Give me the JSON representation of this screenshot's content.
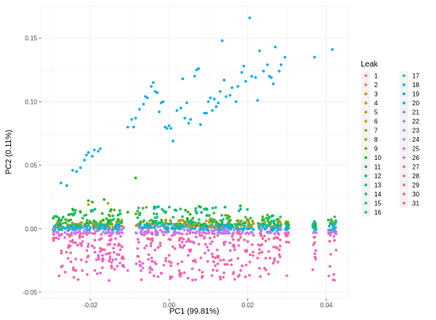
{
  "chart_data": {
    "type": "scatter",
    "xlabel": "PC1 (99.81%)",
    "ylabel": "PC2 (0.11%)",
    "xlim": [
      -0.0325,
      0.0455
    ],
    "ylim": [
      -0.055,
      0.175
    ],
    "x_ticks": [
      -0.02,
      0.0,
      0.02,
      0.04
    ],
    "x_tick_labels": [
      "-0.02",
      "0.00",
      "0.02",
      "0.04"
    ],
    "y_ticks": [
      -0.05,
      0.0,
      0.05,
      0.1,
      0.15
    ],
    "y_tick_labels": [
      "-0.05",
      "0.00",
      "0.05",
      "0.10",
      "0.15"
    ],
    "grid": true,
    "legend": {
      "title": "Leak",
      "placement": "right",
      "entries": [
        "1",
        "2",
        "3",
        "4",
        "5",
        "6",
        "7",
        "8",
        "9",
        "10",
        "11",
        "12",
        "13",
        "14",
        "15",
        "16",
        "17",
        "18",
        "19",
        "20",
        "21",
        "22",
        "23",
        "24",
        "25",
        "26",
        "27",
        "28",
        "29",
        "30",
        "31"
      ],
      "colors": [
        "#F8766D",
        "#EF7F45",
        "#E28A00",
        "#D49200",
        "#C49A00",
        "#B0A100",
        "#9AA800",
        "#80AE00",
        "#5BB300",
        "#1BB800",
        "#00BB4B",
        "#00BE6C",
        "#00C087",
        "#00C19D",
        "#00C0B2",
        "#00BEC4",
        "#00BAD5",
        "#00B5E4",
        "#00ADF2",
        "#00A5FF",
        "#619CFF",
        "#8B93FF",
        "#A98BFC",
        "#C07EF7",
        "#D175F0",
        "#E06BE4",
        "#EB66D5",
        "#F562C4",
        "#FB61B1",
        "#FF639D",
        "#FF6889"
      ]
    },
    "series": [
      {
        "name": "20",
        "color": "#00ADF2",
        "points": [
          [
            -0.0275,
            0.036
          ],
          [
            -0.026,
            0.034
          ],
          [
            -0.0245,
            0.046
          ],
          [
            -0.0235,
            0.045
          ],
          [
            -0.0225,
            0.048
          ],
          [
            -0.0215,
            0.054
          ],
          [
            -0.021,
            0.058
          ],
          [
            -0.0205,
            0.06
          ],
          [
            -0.0195,
            0.057
          ],
          [
            -0.019,
            0.062
          ],
          [
            -0.018,
            0.061
          ],
          [
            -0.0175,
            0.063
          ],
          [
            -0.0105,
            0.08
          ],
          [
            -0.0095,
            0.086
          ],
          [
            -0.009,
            0.08
          ],
          [
            -0.0085,
            0.087
          ],
          [
            -0.0075,
            0.094
          ],
          [
            -0.0065,
            0.098
          ],
          [
            -0.006,
            0.104
          ],
          [
            -0.0055,
            0.103
          ],
          [
            -0.0045,
            0.112
          ],
          [
            -0.004,
            0.115
          ],
          [
            -0.0035,
            0.108
          ],
          [
            -0.003,
            0.107
          ],
          [
            -0.0025,
            0.092
          ],
          [
            -0.002,
            0.099
          ],
          [
            -0.0015,
            0.1
          ],
          [
            -0.001,
            0.08
          ],
          [
            -0.0005,
            0.079
          ],
          [
            0.0,
            0.081
          ],
          [
            0.0005,
            0.079
          ],
          [
            0.001,
            0.069
          ],
          [
            0.002,
            0.093
          ],
          [
            0.003,
            0.095
          ],
          [
            0.0035,
            0.118
          ],
          [
            0.004,
            0.087
          ],
          [
            0.0045,
            0.099
          ],
          [
            0.005,
            0.083
          ],
          [
            0.0055,
            0.086
          ],
          [
            0.0065,
            0.12
          ],
          [
            0.007,
            0.125
          ],
          [
            0.0075,
            0.126
          ],
          [
            0.008,
            0.082
          ],
          [
            0.009,
            0.091
          ],
          [
            0.0095,
            0.091
          ],
          [
            0.01,
            0.1
          ],
          [
            0.0105,
            0.103
          ],
          [
            0.011,
            0.093
          ],
          [
            0.0115,
            0.102
          ],
          [
            0.012,
            0.096
          ],
          [
            0.0125,
            0.099
          ],
          [
            0.013,
            0.108
          ],
          [
            0.0135,
            0.148
          ],
          [
            0.014,
            0.117
          ],
          [
            0.0145,
            0.104
          ],
          [
            0.0155,
            0.105
          ],
          [
            0.016,
            0.111
          ],
          [
            0.017,
            0.1
          ],
          [
            0.0175,
            0.112
          ],
          [
            0.0185,
            0.123
          ],
          [
            0.019,
            0.128
          ],
          [
            0.0195,
            0.116
          ],
          [
            0.0205,
            0.166
          ],
          [
            0.021,
            0.12
          ],
          [
            0.022,
            0.119
          ],
          [
            0.0225,
            0.101
          ],
          [
            0.023,
            0.14
          ],
          [
            0.024,
            0.124
          ],
          [
            0.025,
            0.129
          ],
          [
            0.0255,
            0.12
          ],
          [
            0.026,
            0.119
          ],
          [
            0.0265,
            0.114
          ],
          [
            0.027,
            0.143
          ],
          [
            0.028,
            0.124
          ],
          [
            0.0285,
            0.129
          ],
          [
            0.0295,
            0.135
          ],
          [
            0.037,
            0.135
          ],
          [
            0.0415,
            0.141
          ]
        ]
      },
      {
        "name": "10",
        "color": "#1BB800",
        "points": [
          [
            -0.0085,
            0.04
          ],
          [
            -0.0205,
            0.022
          ],
          [
            -0.0195,
            0.021
          ],
          [
            -0.0165,
            0.023
          ],
          [
            -0.0105,
            0.013
          ],
          [
            -0.0225,
            0.013
          ],
          [
            -0.0255,
            0.011
          ]
        ]
      },
      {
        "name": "26",
        "color": "#E06BE4",
        "points": [
          [
            -0.028,
            -0.005
          ],
          [
            -0.0265,
            -0.007
          ],
          [
            -0.0245,
            -0.009
          ],
          [
            -0.022,
            -0.01
          ],
          [
            -0.0205,
            -0.012
          ],
          [
            -0.019,
            -0.015
          ],
          [
            -0.0175,
            -0.018
          ],
          [
            -0.016,
            -0.02
          ],
          [
            -0.015,
            -0.022
          ],
          [
            -0.0135,
            -0.024
          ],
          [
            -0.0125,
            -0.027
          ],
          [
            -0.0115,
            -0.03
          ],
          [
            -0.0105,
            -0.033
          ]
        ]
      },
      {
        "name": "5",
        "color": "#C49A00",
        "points": [
          [
            -0.0205,
            0.019
          ],
          [
            -0.0155,
            0.02
          ],
          [
            0.0105,
            0.008
          ],
          [
            0.0215,
            0.004
          ]
        ]
      }
    ],
    "bands": {
      "columns": [
        {
          "x0": -0.0295,
          "x1": -0.0115,
          "green_top": 0.016
        },
        {
          "x0": -0.0085,
          "x1": 0.0215,
          "green_top": 0.018
        },
        {
          "x0": 0.0225,
          "x1": 0.0285,
          "green_top": 0.011
        },
        {
          "x0": 0.0295,
          "x1": 0.0305,
          "green_top": 0.006
        },
        {
          "x0": 0.0365,
          "x1": 0.0375,
          "green_top": 0.006
        },
        {
          "x0": 0.0405,
          "x1": 0.0425,
          "green_top": 0.01
        }
      ]
    }
  }
}
